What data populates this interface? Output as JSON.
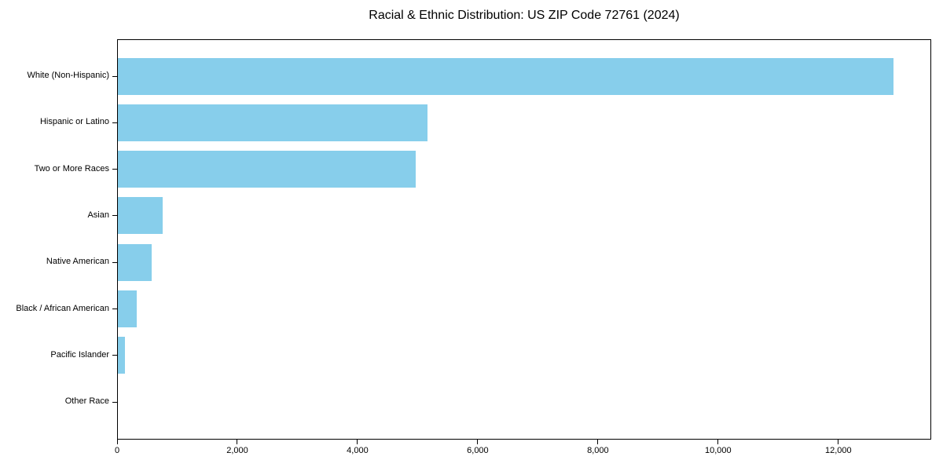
{
  "chart_data": {
    "type": "bar",
    "orientation": "horizontal",
    "title": "Racial & Ethnic Distribution: US ZIP Code 72761 (2024)",
    "categories": [
      "White (Non-Hispanic)",
      "Hispanic or Latino",
      "Two or More Races",
      "Asian",
      "Native American",
      "Black / African American",
      "Pacific Islander",
      "Other Race"
    ],
    "values": [
      12900,
      5150,
      4950,
      750,
      560,
      310,
      120,
      0
    ],
    "xlabel": "",
    "ylabel": "",
    "xlim": [
      0,
      13545
    ],
    "x_ticks": [
      0,
      2000,
      4000,
      6000,
      8000,
      10000,
      12000
    ],
    "x_tick_labels": [
      "0",
      "2,000",
      "4,000",
      "6,000",
      "8,000",
      "10,000",
      "12,000"
    ],
    "bar_color": "#87CEEB",
    "spine_color": "#000000",
    "text_color": "#000000",
    "background_color": "#ffffff",
    "grid": false,
    "legend": null
  }
}
